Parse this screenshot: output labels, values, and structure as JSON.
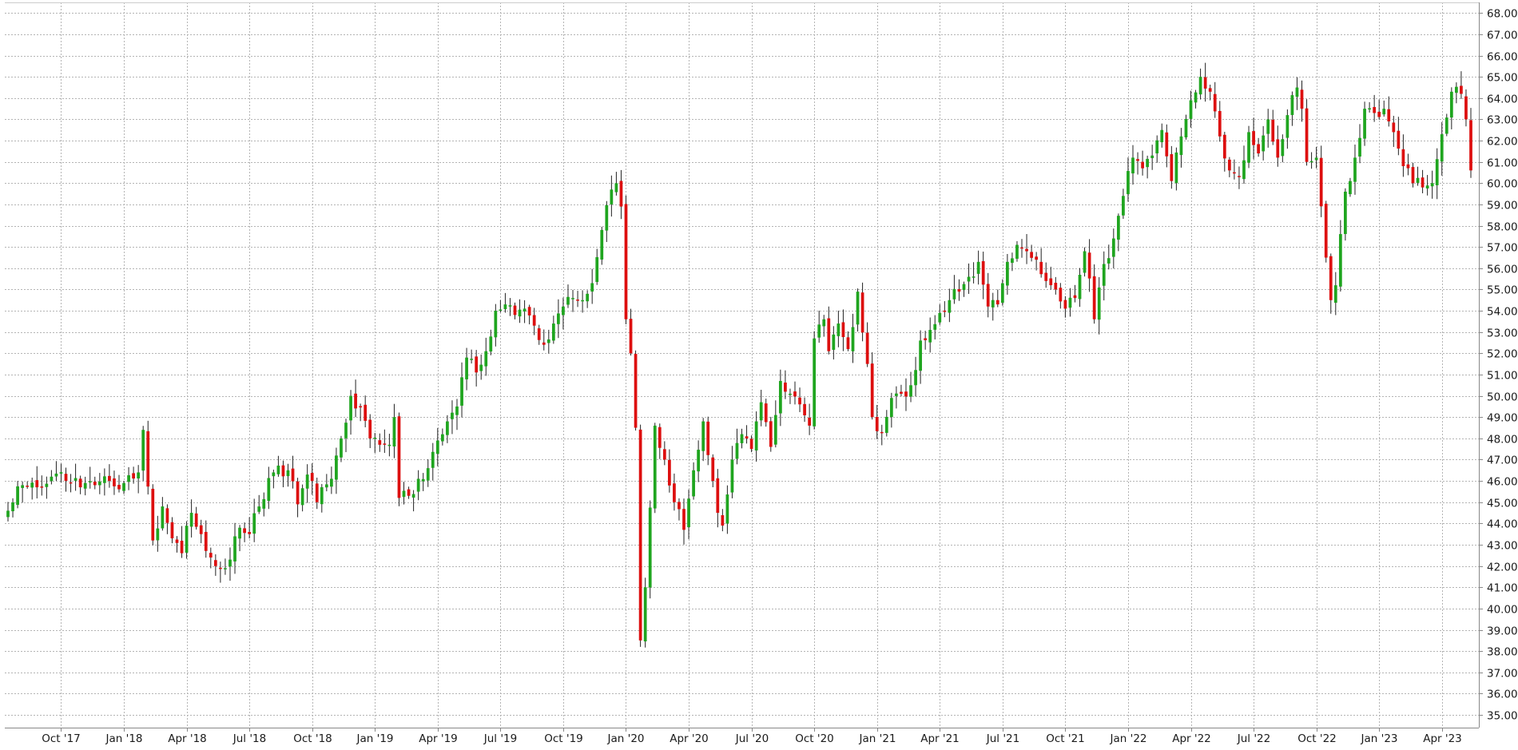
{
  "chart_data": {
    "type": "candlestick",
    "title": "",
    "xlabel": "",
    "ylabel": "",
    "ylim": [
      34.4,
      68.5
    ],
    "grid": true,
    "legend": "none",
    "colors": {
      "up": "#1fa51f",
      "down": "#dd0f0f",
      "wick": "#222222",
      "grid": "#b4b4b4",
      "axis": "#888888"
    },
    "y_ticks": [
      "35.00",
      "36.00",
      "37.00",
      "38.00",
      "39.00",
      "40.00",
      "41.00",
      "42.00",
      "43.00",
      "44.00",
      "45.00",
      "46.00",
      "47.00",
      "48.00",
      "49.00",
      "50.00",
      "51.00",
      "52.00",
      "53.00",
      "54.00",
      "55.00",
      "56.00",
      "57.00",
      "58.00",
      "59.00",
      "60.00",
      "61.00",
      "62.00",
      "63.00",
      "64.00",
      "65.00",
      "66.00",
      "67.00",
      "68.00"
    ],
    "x_ticks": [
      "Oct '17",
      "Jan '18",
      "Apr '18",
      "Jul '18",
      "Oct '18",
      "Jan '19",
      "Apr '19",
      "Jul '19",
      "Oct '19",
      "Jan '20",
      "Apr '20",
      "Jul '20",
      "Oct '20",
      "Jan '21",
      "Apr '21",
      "Jul '21",
      "Oct '21",
      "Jan '22",
      "Apr '22",
      "Jul '22",
      "Oct '22",
      "Jan '23",
      "Apr '23"
    ],
    "x_tick_weeks": [
      11,
      24,
      37,
      50,
      63,
      76,
      89,
      102,
      115,
      128,
      141,
      154,
      167,
      180,
      193,
      206,
      219,
      232,
      245,
      258,
      271,
      284,
      297
    ],
    "close_anchors": [
      [
        0,
        44.6
      ],
      [
        3,
        45.8
      ],
      [
        6,
        45.7
      ],
      [
        9,
        46.2
      ],
      [
        12,
        46.0
      ],
      [
        15,
        45.7
      ],
      [
        18,
        45.8
      ],
      [
        21,
        46.0
      ],
      [
        24,
        45.9
      ],
      [
        27,
        46.4
      ],
      [
        28,
        48.4
      ],
      [
        30,
        43.2
      ],
      [
        32,
        44.8
      ],
      [
        34,
        43.3
      ],
      [
        36,
        42.6
      ],
      [
        38,
        44.5
      ],
      [
        40,
        43.5
      ],
      [
        42,
        42.4
      ],
      [
        44,
        41.9
      ],
      [
        46,
        42.3
      ],
      [
        48,
        43.8
      ],
      [
        50,
        43.5
      ],
      [
        52,
        44.8
      ],
      [
        55,
        46.4
      ],
      [
        58,
        46.5
      ],
      [
        60,
        44.9
      ],
      [
        62,
        46.3
      ],
      [
        64,
        45.0
      ],
      [
        67,
        46.1
      ],
      [
        69,
        48.0
      ],
      [
        71,
        50.0
      ],
      [
        73,
        49.5
      ],
      [
        75,
        48.0
      ],
      [
        77,
        47.7
      ],
      [
        79,
        47.7
      ],
      [
        80,
        49.0
      ],
      [
        81,
        45.2
      ],
      [
        83,
        45.3
      ],
      [
        85,
        46.1
      ],
      [
        87,
        46.6
      ],
      [
        89,
        47.9
      ],
      [
        91,
        48.8
      ],
      [
        93,
        49.5
      ],
      [
        95,
        51.8
      ],
      [
        97,
        51.1
      ],
      [
        99,
        52.1
      ],
      [
        101,
        54.0
      ],
      [
        103,
        54.3
      ],
      [
        105,
        53.8
      ],
      [
        107,
        54.1
      ],
      [
        109,
        53.3
      ],
      [
        111,
        52.4
      ],
      [
        113,
        53.4
      ],
      [
        115,
        54.2
      ],
      [
        117,
        54.6
      ],
      [
        119,
        54.5
      ],
      [
        121,
        55.3
      ],
      [
        123,
        57.8
      ],
      [
        125,
        59.7
      ],
      [
        126,
        60.0
      ],
      [
        127,
        58.9
      ],
      [
        128,
        53.6
      ],
      [
        129,
        52.0
      ],
      [
        130,
        48.5
      ],
      [
        131,
        38.5
      ],
      [
        132,
        41.0
      ],
      [
        134,
        48.6
      ],
      [
        136,
        47.0
      ],
      [
        138,
        45.0
      ],
      [
        140,
        43.7
      ],
      [
        142,
        46.5
      ],
      [
        144,
        48.8
      ],
      [
        146,
        46.0
      ],
      [
        147,
        44.5
      ],
      [
        148,
        43.9
      ],
      [
        150,
        47.0
      ],
      [
        152,
        48.2
      ],
      [
        154,
        47.5
      ],
      [
        156,
        49.7
      ],
      [
        158,
        47.6
      ],
      [
        160,
        50.7
      ],
      [
        162,
        50.1
      ],
      [
        164,
        49.6
      ],
      [
        166,
        48.6
      ],
      [
        167,
        52.7
      ],
      [
        169,
        53.6
      ],
      [
        170,
        52.1
      ],
      [
        172,
        53.4
      ],
      [
        174,
        52.2
      ],
      [
        176,
        54.9
      ],
      [
        178,
        51.5
      ],
      [
        179,
        49.0
      ],
      [
        181,
        48.3
      ],
      [
        183,
        49.9
      ],
      [
        185,
        50.1
      ],
      [
        187,
        50.5
      ],
      [
        189,
        52.6
      ],
      [
        191,
        53.1
      ],
      [
        193,
        53.9
      ],
      [
        195,
        54.5
      ],
      [
        197,
        54.9
      ],
      [
        199,
        55.6
      ],
      [
        201,
        56.3
      ],
      [
        203,
        54.2
      ],
      [
        205,
        54.3
      ],
      [
        207,
        56.3
      ],
      [
        209,
        57.1
      ],
      [
        211,
        56.8
      ],
      [
        213,
        56.4
      ],
      [
        215,
        55.4
      ],
      [
        217,
        55.0
      ],
      [
        219,
        54.1
      ],
      [
        221,
        54.6
      ],
      [
        223,
        56.8
      ],
      [
        225,
        53.6
      ],
      [
        227,
        56.2
      ],
      [
        229,
        57.4
      ],
      [
        231,
        59.4
      ],
      [
        233,
        61.2
      ],
      [
        235,
        60.7
      ],
      [
        237,
        61.3
      ],
      [
        239,
        62.5
      ],
      [
        241,
        60.1
      ],
      [
        243,
        62.2
      ],
      [
        245,
        63.9
      ],
      [
        247,
        65.0
      ],
      [
        249,
        64.3
      ],
      [
        251,
        62.2
      ],
      [
        253,
        60.6
      ],
      [
        255,
        60.3
      ],
      [
        257,
        62.4
      ],
      [
        259,
        61.4
      ],
      [
        261,
        63.0
      ],
      [
        263,
        61.2
      ],
      [
        265,
        63.2
      ],
      [
        267,
        64.5
      ],
      [
        268,
        63.5
      ],
      [
        269,
        61.0
      ],
      [
        271,
        61.2
      ],
      [
        273,
        56.5
      ],
      [
        274,
        54.5
      ],
      [
        275,
        55.2
      ],
      [
        277,
        59.6
      ],
      [
        279,
        61.2
      ],
      [
        281,
        63.5
      ],
      [
        283,
        63.3
      ],
      [
        285,
        63.5
      ],
      [
        287,
        62.4
      ],
      [
        289,
        60.8
      ],
      [
        291,
        60.0
      ],
      [
        293,
        59.8
      ],
      [
        295,
        60.0
      ],
      [
        297,
        62.3
      ],
      [
        299,
        64.3
      ],
      [
        301,
        64.2
      ],
      [
        302,
        63.0
      ],
      [
        303,
        60.6
      ]
    ]
  }
}
